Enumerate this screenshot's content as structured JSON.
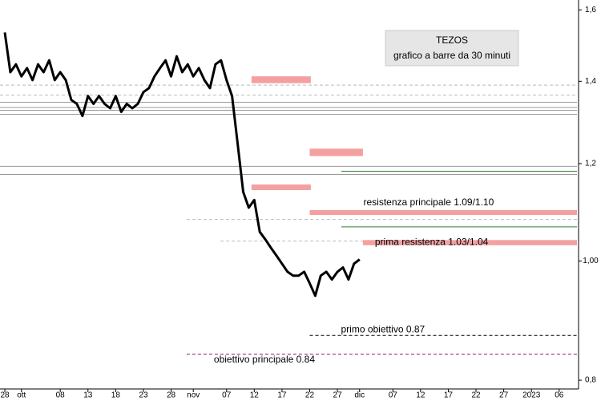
{
  "chart_data": {
    "type": "line",
    "title": "TEZOS",
    "subtitle": "grafico a barre da 30 minuti",
    "color": "#000000",
    "log_scale": true,
    "x": [
      0,
      1,
      2,
      3,
      4,
      5,
      6,
      7,
      8,
      9,
      10,
      11,
      12,
      13,
      14,
      15,
      16,
      17,
      18,
      19,
      20,
      21,
      22,
      23,
      24,
      25,
      26,
      27,
      28,
      29,
      30,
      31,
      32,
      33,
      34,
      35,
      36,
      37,
      38,
      39,
      40,
      41,
      42,
      43,
      44,
      45,
      46,
      47,
      48,
      49,
      50,
      51,
      52,
      53,
      54,
      55,
      56,
      57,
      58,
      59,
      60,
      61,
      62,
      63,
      64
    ],
    "values": [
      1.534,
      1.424,
      1.445,
      1.413,
      1.435,
      1.403,
      1.445,
      1.424,
      1.456,
      1.403,
      1.424,
      1.403,
      1.352,
      1.342,
      1.312,
      1.362,
      1.342,
      1.362,
      1.342,
      1.331,
      1.362,
      1.322,
      1.342,
      1.331,
      1.342,
      1.372,
      1.382,
      1.413,
      1.435,
      1.456,
      1.413,
      1.467,
      1.424,
      1.445,
      1.413,
      1.435,
      1.403,
      1.382,
      1.445,
      1.456,
      1.403,
      1.362,
      1.245,
      1.138,
      1.105,
      1.121,
      1.056,
      1.041,
      1.025,
      1.01,
      0.995,
      0.98,
      0.973,
      0.973,
      0.98,
      0.959,
      0.937,
      0.973,
      0.98,
      0.966,
      0.98,
      0.988,
      0.966,
      0.995,
      1.003
    ],
    "xlim": [
      -0.87,
      103.5
    ],
    "ylim": [
      0.787,
      1.63
    ],
    "xticks": [
      {
        "value": 0,
        "label": "28"
      },
      {
        "value": 3,
        "label": "ott"
      },
      {
        "value": 10,
        "label": "08"
      },
      {
        "value": 15,
        "label": "13"
      },
      {
        "value": 20,
        "label": "18"
      },
      {
        "value": 25,
        "label": "23"
      },
      {
        "value": 30,
        "label": "28"
      },
      {
        "value": 34,
        "label": "nov"
      },
      {
        "value": 40,
        "label": "07"
      },
      {
        "value": 45,
        "label": "12"
      },
      {
        "value": 50,
        "label": "17"
      },
      {
        "value": 55,
        "label": "22"
      },
      {
        "value": 60,
        "label": "27"
      },
      {
        "value": 64,
        "label": "dic"
      },
      {
        "value": 70,
        "label": "07"
      },
      {
        "value": 75,
        "label": "12"
      },
      {
        "value": 80,
        "label": "17"
      },
      {
        "value": 85,
        "label": "22"
      },
      {
        "value": 90,
        "label": "27"
      },
      {
        "value": 95,
        "label": "2023"
      },
      {
        "value": 100,
        "label": "06"
      }
    ],
    "yticks": [
      {
        "value": 1.6,
        "label": "1,6"
      },
      {
        "value": 1.4,
        "label": "1,4"
      },
      {
        "value": 1.2,
        "label": "1,2"
      },
      {
        "value": 1.0,
        "label": "1,00"
      },
      {
        "value": 0.8,
        "label": "0,8"
      }
    ],
    "zones": [
      {
        "low": 1.395,
        "high": 1.413,
        "from": 44.5,
        "to": 55.2,
        "color": "#f4a0a0"
      },
      {
        "low": 1.217,
        "high": 1.234,
        "from": 55,
        "to": 64.6,
        "color": "#f4a0a0"
      },
      {
        "low": 1.142,
        "high": 1.154,
        "from": 44.5,
        "to": 55.2,
        "color": "#f4a0a0"
      },
      {
        "label": "resistenza principale 1.09/1.10",
        "low": 1.09,
        "high": 1.1,
        "from": 55,
        "color": "#f4a0a0"
      },
      {
        "label": "prima resistenza 1.03/1.04",
        "low": 1.03,
        "high": 1.04,
        "from": 64.6,
        "color": "#f4a0a0"
      }
    ],
    "levels": [
      {
        "value": 1.39,
        "from": -0.87,
        "color": "#bbbbbb",
        "dash": true
      },
      {
        "value": 1.364,
        "from": -0.87,
        "color": "#bbbbbb",
        "dash": true
      },
      {
        "value": 1.346,
        "from": -0.87,
        "color": "#999999"
      },
      {
        "value": 1.333,
        "from": -0.87,
        "color": "#999999"
      },
      {
        "value": 1.326,
        "from": -0.87,
        "color": "#999999"
      },
      {
        "value": 1.316,
        "from": -0.87,
        "color": "#999999"
      },
      {
        "value": 1.194,
        "from": -0.87,
        "color": "#999999"
      },
      {
        "value": 1.176,
        "from": -0.87,
        "color": "#999999"
      },
      {
        "value": 1.183,
        "from": 60.7,
        "color": "#2e7d32"
      },
      {
        "value": 1.066,
        "from": 60.7,
        "color": "#2e7d32"
      },
      {
        "value": 1.081,
        "from": 32.8,
        "color": "#bbbbbb",
        "dash": true
      },
      {
        "value": 1.038,
        "from": 38.9,
        "color": "#bbbbbb",
        "dash": true
      },
      {
        "value": 0.87,
        "label": "primo obiettivo 0.87",
        "from": 55,
        "color": "#000000",
        "dash": true
      },
      {
        "value": 0.84,
        "label": "obiettivo principale 0.84",
        "from": 32.8,
        "color": "#8b1a6b",
        "dash": true
      }
    ]
  }
}
